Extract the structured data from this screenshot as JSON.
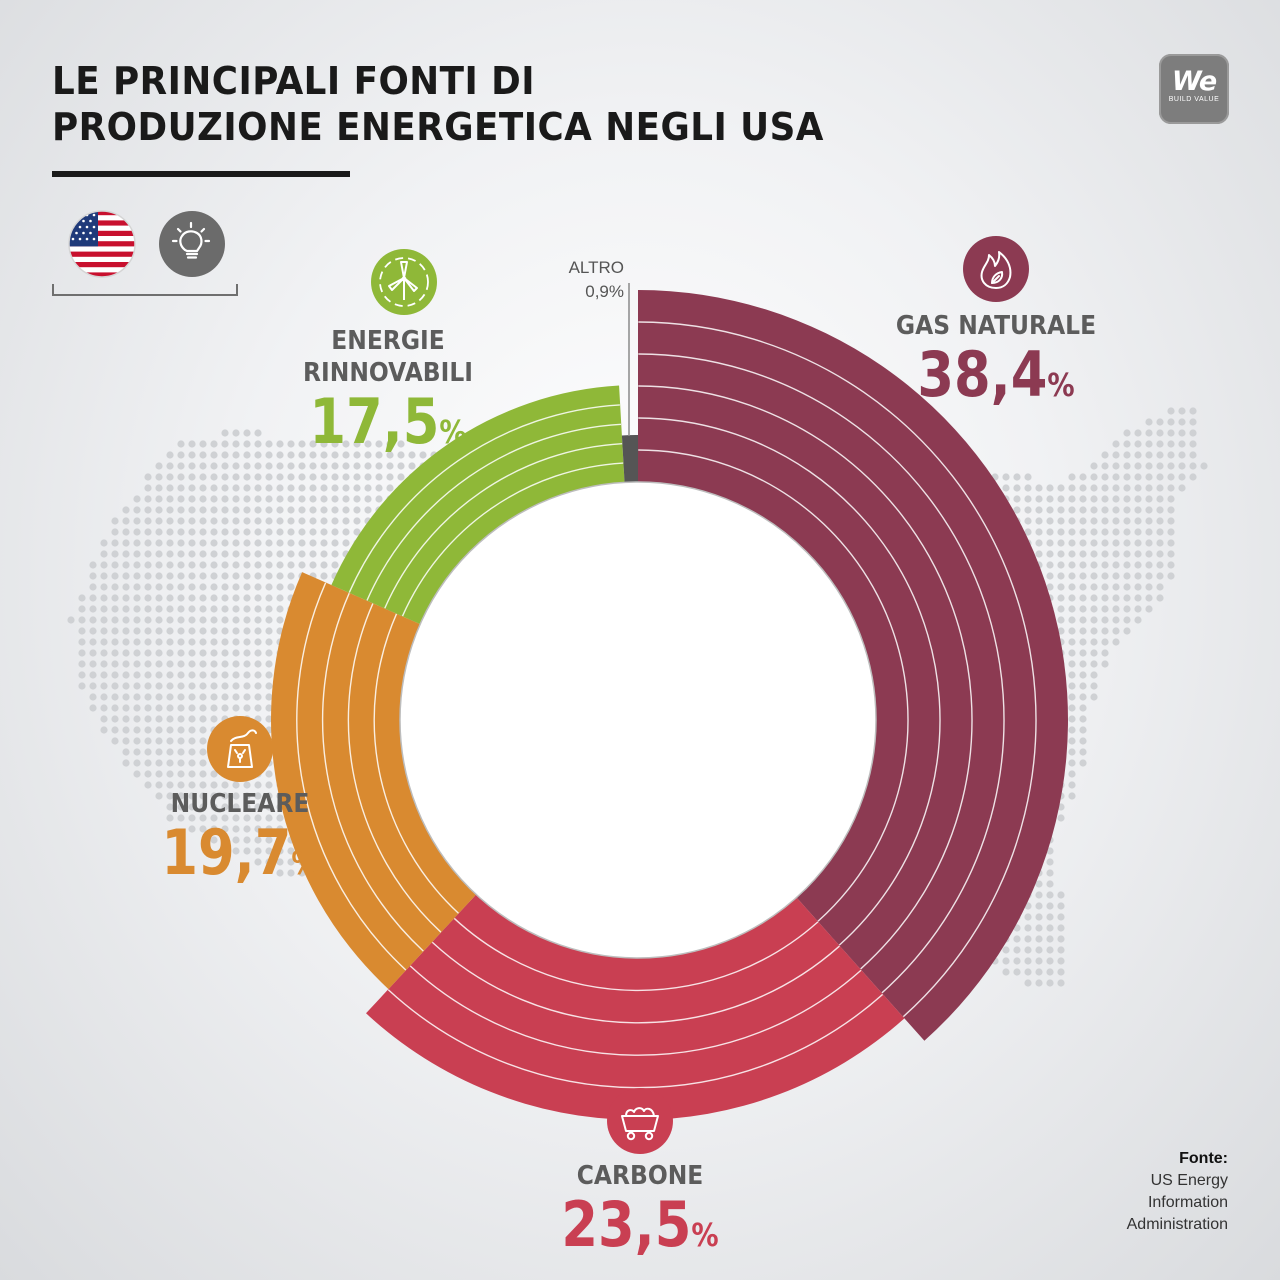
{
  "title_lines": [
    "LE PRINCIPALI FONTI DI",
    "PRODUZIONE ENERGETICA NEGLI USA"
  ],
  "brand": {
    "logo_text": "We",
    "tagline": "BUILD VALUE"
  },
  "icons": {
    "flag": "usa-flag-icon",
    "lightbulb": "lightbulb-icon",
    "renewables": "wind-turbine-icon",
    "gas": "flame-icon",
    "nuclear": "nuclear-plant-icon",
    "coal": "coal-cart-icon"
  },
  "labels": {
    "gas": {
      "name": "GAS NATURALE",
      "value": "38,4",
      "pct": "%"
    },
    "renewables": {
      "name_lines": [
        "ENERGIE",
        "RINNOVABILI"
      ],
      "value": "17,5",
      "pct": "%"
    },
    "nuclear": {
      "name": "NUCLEARE",
      "value": "19,7",
      "pct": "%"
    },
    "coal": {
      "name": "CARBONE",
      "value": "23,5",
      "pct": "%"
    },
    "other": {
      "name": "ALTRO",
      "value": "0,9%"
    }
  },
  "source": {
    "heading": "Fonte:",
    "lines": [
      "US Energy",
      "Information",
      "Administration"
    ]
  },
  "chart_data": {
    "type": "pie",
    "categories": [
      "Gas naturale",
      "Carbone",
      "Nucleare",
      "Energie rinnovabili",
      "Altro"
    ],
    "values": [
      38.4,
      23.5,
      19.7,
      17.5,
      0.9
    ],
    "unit": "%",
    "colors": {
      "Gas naturale": "#8c3a52",
      "Carbone": "#c93f52",
      "Nucleare": "#d98a30",
      "Energie rinnovabili": "#8fb838",
      "Altro": "#555555"
    }
  }
}
